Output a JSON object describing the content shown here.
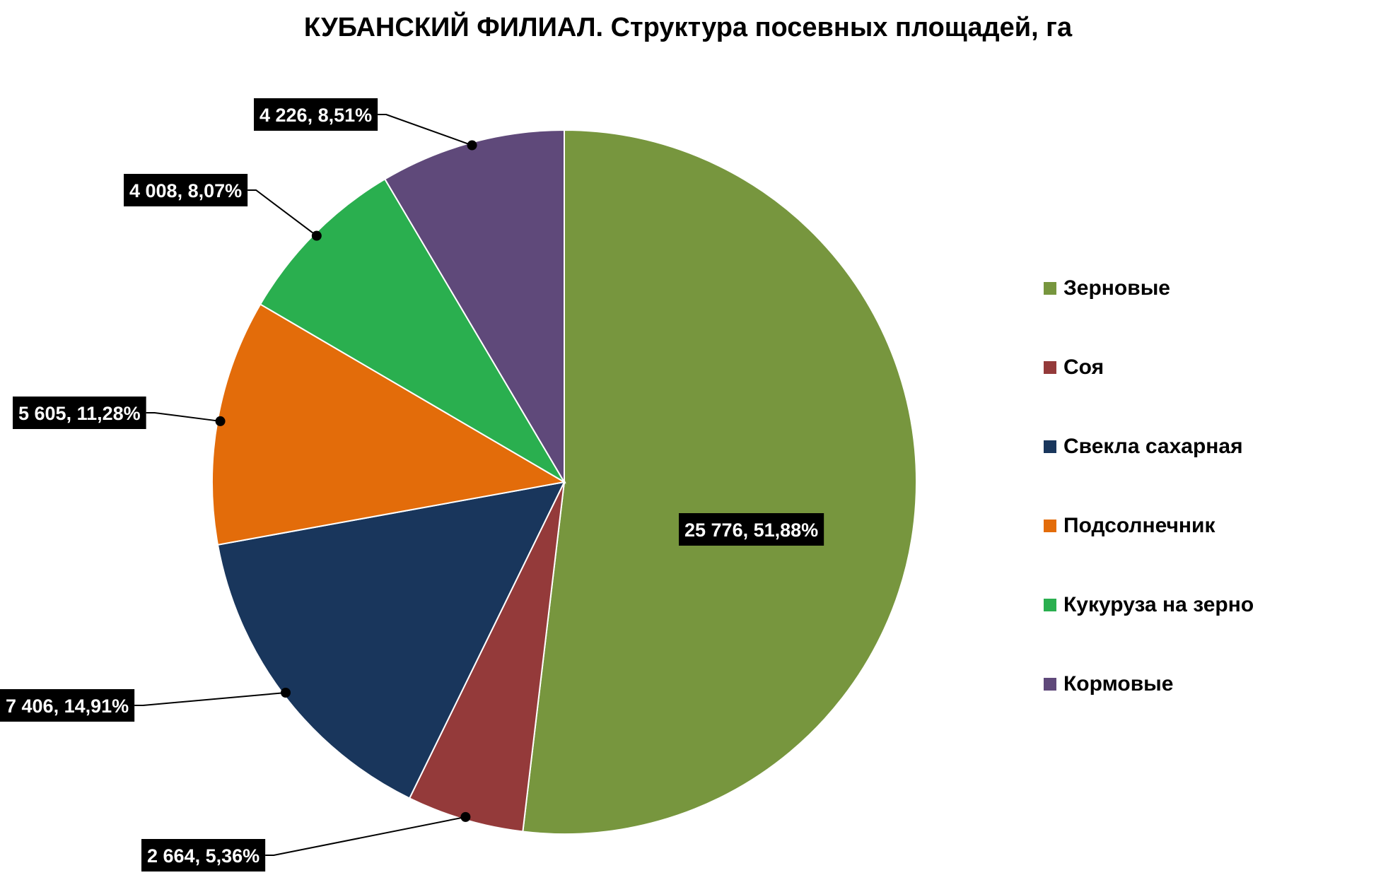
{
  "chart_data": {
    "type": "pie",
    "title": "КУБАНСКИЙ ФИЛИАЛ. Структура посевных площадей, га",
    "legend_position": "right",
    "start_angle_deg": 0,
    "direction": "clockwise",
    "slices": [
      {
        "name": "Зерновые",
        "value": 25776,
        "percent": 51.88,
        "label": "25 776,  51,88%",
        "color": "#77963E"
      },
      {
        "name": "Соя",
        "value": 2664,
        "percent": 5.36,
        "label": "2 664,  5,36%",
        "color": "#943A3A"
      },
      {
        "name": "Свекла сахарная",
        "value": 7406,
        "percent": 14.91,
        "label": "7 406,  14,91%",
        "color": "#19365C"
      },
      {
        "name": "Подсолнечник",
        "value": 5605,
        "percent": 11.28,
        "label": "5 605,  11,28%",
        "color": "#E36C0A"
      },
      {
        "name": "Кукуруза на зерно",
        "value": 4008,
        "percent": 8.07,
        "label": "4 008,  8,07%",
        "color": "#2AAF4F"
      },
      {
        "name": "Кормовые",
        "value": 4226,
        "percent": 8.51,
        "label": "4 226,  8,51%",
        "color": "#5F497A"
      }
    ]
  }
}
